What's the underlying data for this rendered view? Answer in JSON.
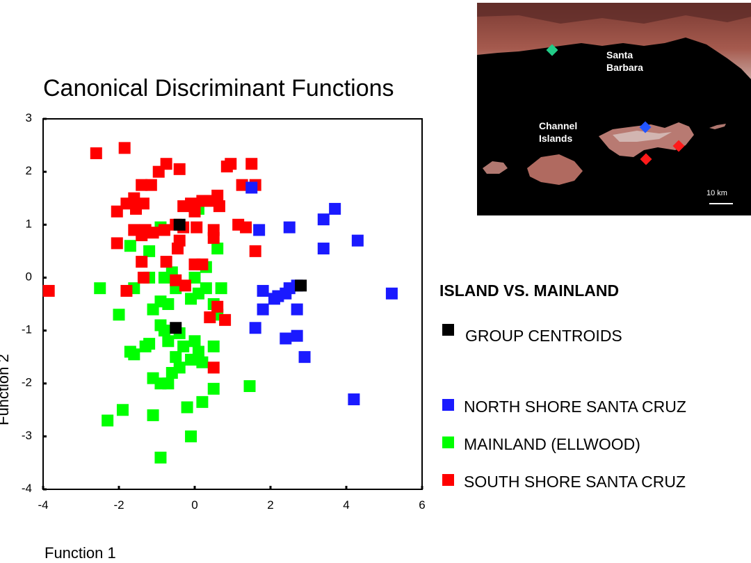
{
  "chart_data": {
    "type": "scatter",
    "title": "Canonical Discriminant Functions",
    "xlabel": "Function 1",
    "ylabel": "Function 2",
    "xlim": [
      -4,
      6
    ],
    "ylim": [
      -4,
      3
    ],
    "xticks": [
      "-4",
      "-2",
      "0",
      "2",
      "4",
      "6"
    ],
    "yticks": [
      "3",
      "2",
      "1",
      "0",
      "-1",
      "-2",
      "-3",
      "-4"
    ],
    "legend_title": "ISLAND VS. MAINLAND",
    "series": [
      {
        "name": "GROUP CENTROIDS",
        "color": "#000000",
        "points": [
          [
            -0.5,
            -0.95
          ],
          [
            2.8,
            -0.15
          ],
          [
            -0.4,
            1.0
          ]
        ]
      },
      {
        "name": "NORTH SHORE SANTA CRUZ",
        "color": "#1a1aff",
        "points": [
          [
            1.5,
            1.7
          ],
          [
            3.7,
            1.3
          ],
          [
            3.4,
            1.1
          ],
          [
            1.7,
            0.9
          ],
          [
            2.5,
            0.95
          ],
          [
            4.3,
            0.7
          ],
          [
            3.4,
            0.55
          ],
          [
            1.8,
            -0.25
          ],
          [
            2.2,
            -0.35
          ],
          [
            2.4,
            -0.3
          ],
          [
            2.5,
            -0.2
          ],
          [
            2.7,
            -0.15
          ],
          [
            2.1,
            -0.4
          ],
          [
            1.8,
            -0.6
          ],
          [
            2.7,
            -0.6
          ],
          [
            1.6,
            -0.95
          ],
          [
            2.4,
            -1.15
          ],
          [
            2.7,
            -1.1
          ],
          [
            2.9,
            -1.5
          ],
          [
            5.2,
            -0.3
          ],
          [
            4.2,
            -2.3
          ]
        ]
      },
      {
        "name": "MAINLAND (ELLWOOD)",
        "color": "#00ff00",
        "points": [
          [
            -0.9,
            0.95
          ],
          [
            0.1,
            1.3
          ],
          [
            -1.7,
            0.6
          ],
          [
            -1.2,
            0.5
          ],
          [
            0.6,
            0.55
          ],
          [
            -0.6,
            0.1
          ],
          [
            0.3,
            0.2
          ],
          [
            -0.8,
            0.0
          ],
          [
            -1.2,
            0.0
          ],
          [
            0.0,
            0.0
          ],
          [
            -2.5,
            -0.2
          ],
          [
            -1.6,
            -0.2
          ],
          [
            -0.5,
            -0.2
          ],
          [
            0.3,
            -0.2
          ],
          [
            0.7,
            -0.2
          ],
          [
            -2.0,
            -0.7
          ],
          [
            -1.1,
            -0.6
          ],
          [
            -0.9,
            -0.45
          ],
          [
            -0.7,
            -0.5
          ],
          [
            -0.1,
            -0.4
          ],
          [
            0.1,
            -0.3
          ],
          [
            0.5,
            -0.5
          ],
          [
            0.6,
            -0.7
          ],
          [
            -0.9,
            -0.9
          ],
          [
            -0.8,
            -1.0
          ],
          [
            -0.4,
            -1.05
          ],
          [
            0.0,
            -1.2
          ],
          [
            -0.7,
            -1.2
          ],
          [
            -1.7,
            -1.4
          ],
          [
            -1.6,
            -1.45
          ],
          [
            -1.3,
            -1.3
          ],
          [
            -1.2,
            -1.25
          ],
          [
            -0.3,
            -1.3
          ],
          [
            0.1,
            -1.4
          ],
          [
            0.5,
            -1.3
          ],
          [
            -0.5,
            -1.5
          ],
          [
            -0.1,
            -1.55
          ],
          [
            0.2,
            -1.6
          ],
          [
            -0.4,
            -1.7
          ],
          [
            -0.6,
            -1.8
          ],
          [
            -1.1,
            -1.9
          ],
          [
            -0.9,
            -2.0
          ],
          [
            -0.7,
            -2.0
          ],
          [
            0.5,
            -2.1
          ],
          [
            1.45,
            -2.05
          ],
          [
            0.2,
            -2.35
          ],
          [
            -0.2,
            -2.45
          ],
          [
            -1.9,
            -2.5
          ],
          [
            -2.3,
            -2.7
          ],
          [
            -1.1,
            -2.6
          ],
          [
            -0.1,
            -3.0
          ],
          [
            -0.9,
            -3.4
          ]
        ]
      },
      {
        "name": "SOUTH SHORE SANTA CRUZ",
        "color": "#ff0000",
        "points": [
          [
            -2.6,
            2.35
          ],
          [
            -1.85,
            2.45
          ],
          [
            -0.75,
            2.15
          ],
          [
            -0.4,
            2.05
          ],
          [
            -0.95,
            2.0
          ],
          [
            0.95,
            2.15
          ],
          [
            1.5,
            2.15
          ],
          [
            0.85,
            2.1
          ],
          [
            -1.4,
            1.75
          ],
          [
            -1.15,
            1.75
          ],
          [
            1.25,
            1.75
          ],
          [
            1.6,
            1.75
          ],
          [
            -1.6,
            1.5
          ],
          [
            -1.8,
            1.4
          ],
          [
            -1.55,
            1.3
          ],
          [
            -1.35,
            1.4
          ],
          [
            -2.05,
            1.25
          ],
          [
            -0.3,
            1.35
          ],
          [
            0.2,
            1.45
          ],
          [
            0.4,
            1.45
          ],
          [
            0.6,
            1.55
          ],
          [
            0.65,
            1.35
          ],
          [
            0.0,
            1.25
          ],
          [
            -0.1,
            1.4
          ],
          [
            -1.6,
            0.9
          ],
          [
            -1.4,
            0.8
          ],
          [
            -1.3,
            0.9
          ],
          [
            -1.1,
            0.85
          ],
          [
            -0.8,
            0.9
          ],
          [
            -0.5,
            1.0
          ],
          [
            -0.3,
            0.95
          ],
          [
            0.05,
            0.95
          ],
          [
            0.5,
            0.9
          ],
          [
            0.5,
            0.75
          ],
          [
            1.15,
            1.0
          ],
          [
            1.35,
            0.95
          ],
          [
            -0.4,
            0.7
          ],
          [
            -2.05,
            0.65
          ],
          [
            -0.45,
            0.55
          ],
          [
            1.6,
            0.5
          ],
          [
            -1.4,
            0.3
          ],
          [
            -0.75,
            0.3
          ],
          [
            0.0,
            0.25
          ],
          [
            0.2,
            0.25
          ],
          [
            -1.35,
            0.0
          ],
          [
            -0.5,
            -0.05
          ],
          [
            -0.25,
            -0.15
          ],
          [
            -1.8,
            -0.25
          ],
          [
            -3.85,
            -0.25
          ],
          [
            0.6,
            -0.55
          ],
          [
            0.4,
            -0.75
          ],
          [
            0.8,
            -0.8
          ],
          [
            0.5,
            -1.7
          ]
        ]
      }
    ]
  },
  "inset_map": {
    "labels": {
      "santa_barbara_line1": "Santa",
      "santa_barbara_line2": "Barbara",
      "channel_islands_line1": "Channel",
      "channel_islands_line2": "Islands",
      "scale": "10 km"
    },
    "markers": [
      {
        "name": "mainland-ellwood",
        "color": "#22cc88"
      },
      {
        "name": "north-shore",
        "color": "#2255ff"
      },
      {
        "name": "south-shore-1",
        "color": "#ff1a1a"
      },
      {
        "name": "south-shore-2",
        "color": "#ff1a1a"
      }
    ]
  }
}
